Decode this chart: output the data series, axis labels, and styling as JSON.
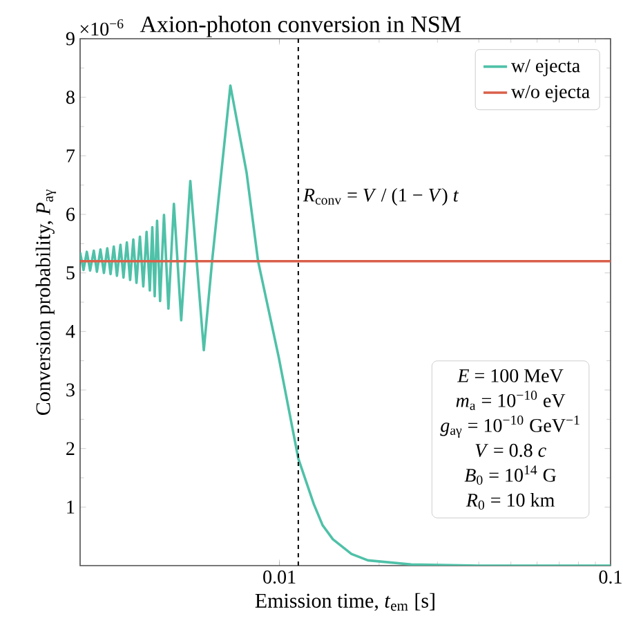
{
  "chart_data": {
    "type": "line",
    "title": "Axion-photon conversion in NSM",
    "xlabel": "Emission time, *t*$_{em}$ [s]",
    "ylabel": "Conversion probability, *P*$_{aγ}$",
    "log": "x",
    "xlim": [
      0.0025,
      0.1
    ],
    "xticks": [
      0.01,
      0.1
    ],
    "ylim": [
      0,
      9
    ],
    "yticks": [
      1,
      2,
      3,
      4,
      5,
      6,
      7,
      8,
      9
    ],
    "grid": false,
    "legend": "top right",
    "marker": "none",
    "line_style": "solid",
    "series": [
      {
        "name": "w/ ejecta",
        "color": "#4fc1a8",
        "x": [
          0.0025,
          0.00256,
          0.00262,
          0.00268,
          0.00275,
          0.00281,
          0.00288,
          0.00295,
          0.00302,
          0.00309,
          0.00316,
          0.00323,
          0.00331,
          0.00338,
          0.00346,
          0.00354,
          0.00362,
          0.0037,
          0.00379,
          0.00388,
          0.00397,
          0.00406,
          0.00413,
          0.0042,
          0.00427,
          0.00436,
          0.00448,
          0.00462,
          0.0048,
          0.00505,
          0.00538,
          0.00591,
          0.00626,
          0.00711,
          0.00796,
          0.00862,
          0.00995,
          0.0114,
          0.0127,
          0.0135,
          0.0145,
          0.0165,
          0.0185,
          0.025,
          0.04,
          0.1
        ],
        "values": [
          5.35,
          5.05,
          5.36,
          5.04,
          5.38,
          5.02,
          5.4,
          5.0,
          5.42,
          4.98,
          5.45,
          4.95,
          5.48,
          4.92,
          5.52,
          4.88,
          5.57,
          4.83,
          5.62,
          4.77,
          5.7,
          4.7,
          5.78,
          4.6,
          5.89,
          4.52,
          5.99,
          4.39,
          6.18,
          4.19,
          6.57,
          3.68,
          5.2,
          8.2,
          6.71,
          5.2,
          3.56,
          1.83,
          1.05,
          0.69,
          0.45,
          0.2,
          0.09,
          0.02,
          0.0,
          0.0
        ]
      },
      {
        "name": "w/o ejecta",
        "color": "#d9604a",
        "x": [
          0.0025,
          0.1
        ],
        "values": [
          5.2,
          5.2
        ]
      }
    ],
    "ref_lines": [
      {
        "axis": "x",
        "value": 0.0114,
        "label": "*R*$_{conv}$ = *V* / (1 − *V*) *t*",
        "color": "#000000",
        "line_style": "dashed"
      }
    ],
    "annotations": [
      "×10$^{−6}$",
      "*E* = 100 MeV",
      "*m*$_{a}$ = 10$^{−10}$ eV",
      "*g*$_{aγ}$ = 10$^{−10}$ GeV$^{−1}$",
      "*V* = 0.8 *c*",
      "*B*$_{0}$ = 10$^{14}$ G",
      "*R*$_{0}$ = 10 km"
    ]
  }
}
